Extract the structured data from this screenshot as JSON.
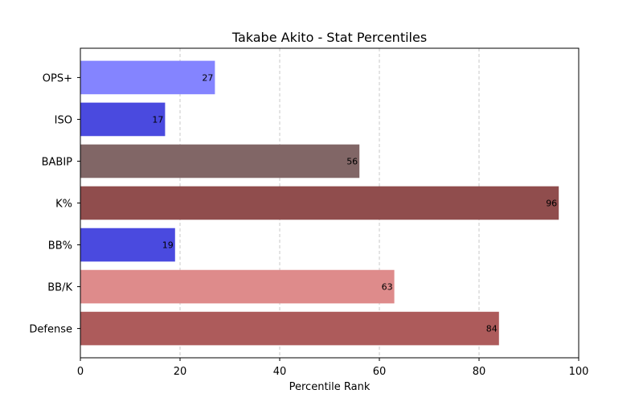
{
  "chart_data": {
    "type": "bar",
    "orientation": "horizontal",
    "title": "Takabe Akito - Stat Percentiles",
    "xlabel": "Percentile Rank",
    "ylabel": "",
    "xlim": [
      0,
      100
    ],
    "xticks": [
      0,
      20,
      40,
      60,
      80,
      100
    ],
    "grid": "vertical dashed",
    "categories": [
      "OPS+",
      "ISO",
      "BABIP",
      "K%",
      "BB%",
      "BB/K",
      "Defense"
    ],
    "values": [
      27,
      17,
      56,
      96,
      19,
      63,
      84
    ],
    "colors": [
      "#8484ff",
      "#4a4adf",
      "#816666",
      "#904d4d",
      "#4a4adf",
      "#de8b8b",
      "#ad5b5b"
    ]
  }
}
